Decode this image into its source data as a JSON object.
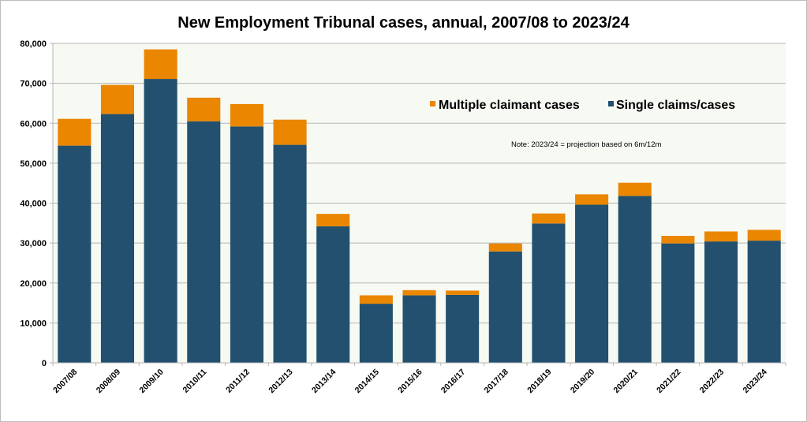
{
  "chart_data": {
    "type": "bar",
    "stacked": true,
    "title": "New Employment Tribunal cases, annual, 2007/08 to 2023/24",
    "xlabel": "",
    "ylabel": "",
    "ylim": [
      0,
      80000
    ],
    "yticks": [
      0,
      10000,
      20000,
      30000,
      40000,
      50000,
      60000,
      70000,
      80000
    ],
    "ytick_labels": [
      "0",
      "10,000",
      "20,000",
      "30,000",
      "40,000",
      "50,000",
      "60,000",
      "70,000",
      "80,000"
    ],
    "grid": true,
    "legend_position": "top-right",
    "categories": [
      "2007/08",
      "2008/09",
      "2009/10",
      "2010/11",
      "2011/12",
      "2012/13",
      "2013/14",
      "2014/15",
      "2015/16",
      "2016/17",
      "2017/18",
      "2018/19",
      "2019/20",
      "2020/21",
      "2021/22",
      "2022/23",
      "2023/24"
    ],
    "series": [
      {
        "name": "Single claims/cases",
        "color": "#22506e",
        "values": [
          54400,
          62300,
          71100,
          60500,
          59200,
          54600,
          34200,
          14800,
          16900,
          17000,
          27900,
          34900,
          39600,
          41800,
          29900,
          30400,
          30600
        ]
      },
      {
        "name": "Multiple claimant cases",
        "color": "#ea8600",
        "values": [
          6700,
          7300,
          7400,
          5900,
          5600,
          6300,
          3100,
          2100,
          1300,
          1100,
          2000,
          2500,
          2600,
          3300,
          1900,
          2500,
          2700
        ]
      }
    ],
    "legend": [
      "Multiple claimant cases",
      "Single claims/cases"
    ],
    "annotation": "Note: 2023/24 = projection based on 6m/12m"
  },
  "colors": {
    "plot_bg": "#f7f9f3",
    "grid": "#b5b5b5"
  }
}
